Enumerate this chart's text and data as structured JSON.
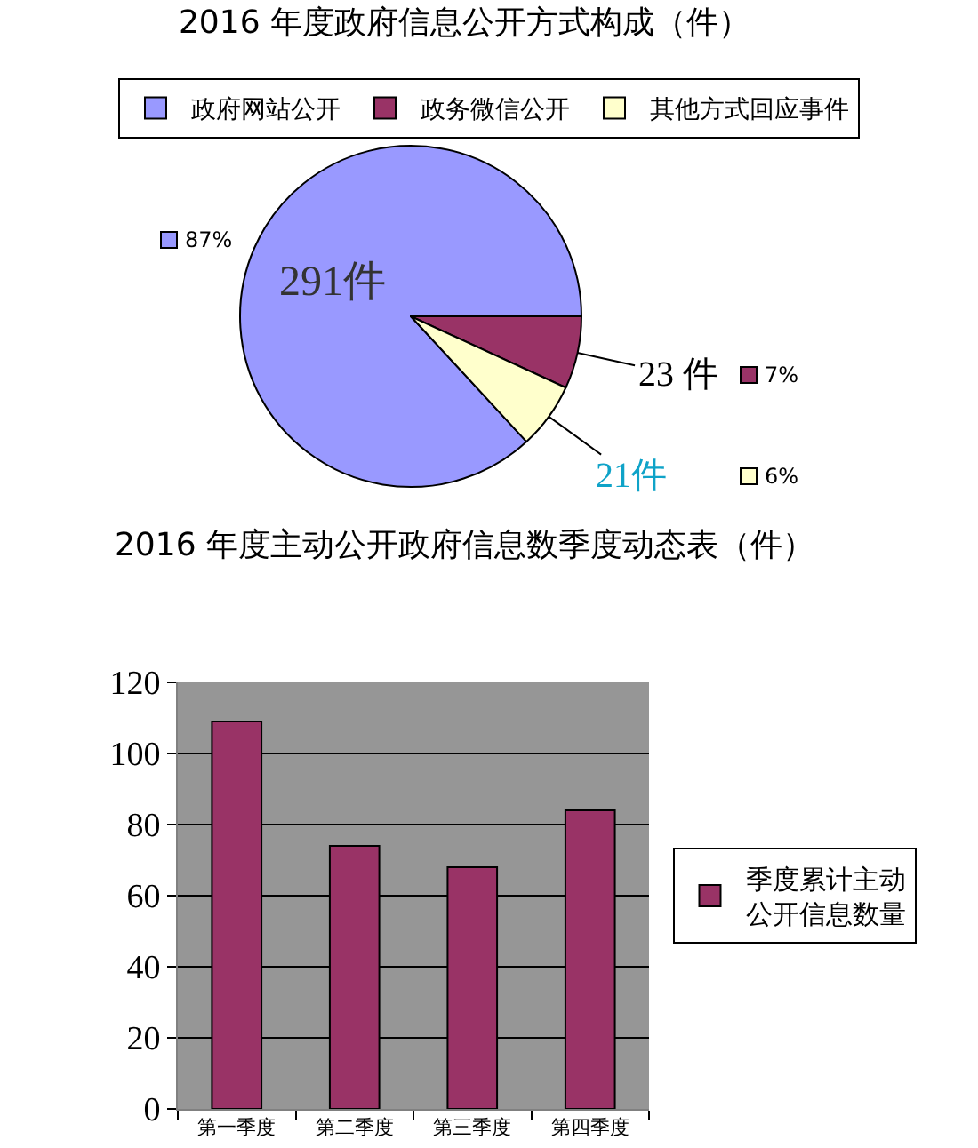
{
  "chart_data": [
    {
      "type": "pie",
      "title": "2016 年度政府信息公开方式构成（件）",
      "categories": [
        "政府网站公开",
        "政务微信公开",
        "其他方式回应事件"
      ],
      "values": [
        291,
        23,
        21
      ],
      "colors": [
        "#9999ff",
        "#993366",
        "#ffffcc"
      ],
      "value_labels": [
        "291件",
        "23 件",
        "21件"
      ],
      "annotations": [
        "87%",
        "7%",
        "6%"
      ],
      "legend": "top"
    },
    {
      "type": "bar",
      "title": "2016 年度主动公开政府信息数季度动态表（件）",
      "categories": [
        "第一季度",
        "第二季度",
        "第三季度",
        "第四季度"
      ],
      "series": [
        {
          "name": "季度累计主动公开信息数量",
          "color": "#993366",
          "values": [
            109,
            74,
            68,
            84
          ]
        }
      ],
      "ylim": [
        0,
        120
      ],
      "yticks": [
        0,
        20,
        40,
        60,
        80,
        100,
        120
      ],
      "grid": "y",
      "legend": "right"
    }
  ]
}
